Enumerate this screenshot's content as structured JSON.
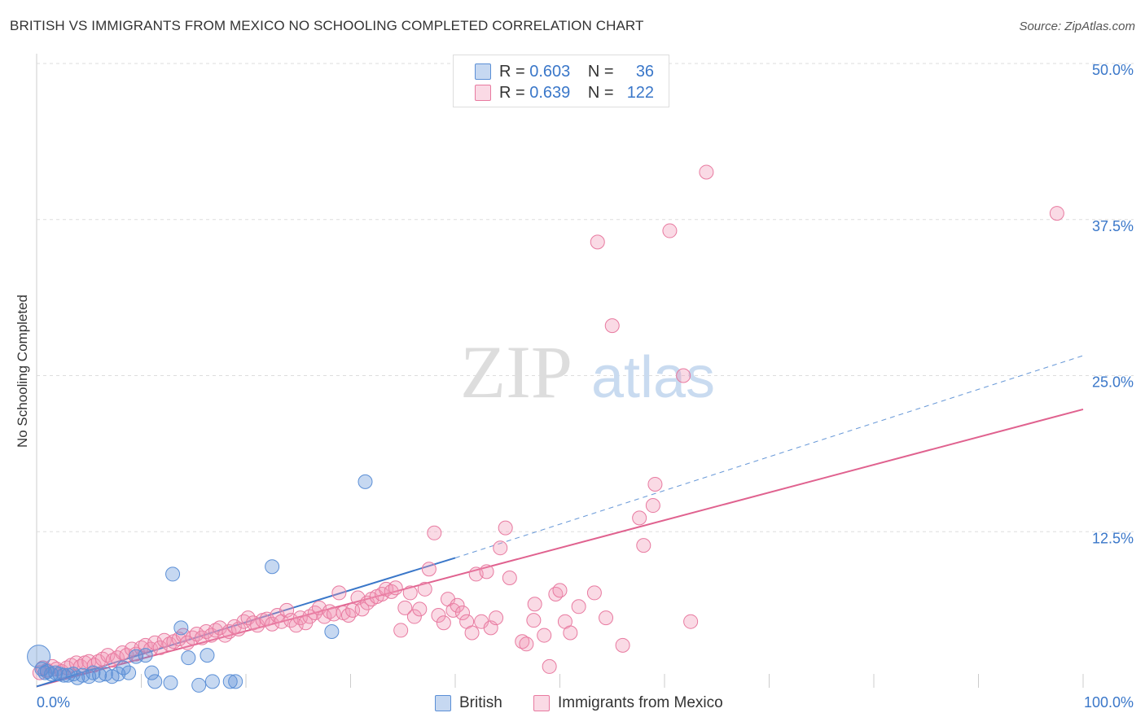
{
  "header": {
    "title": "BRITISH VS IMMIGRANTS FROM MEXICO NO SCHOOLING COMPLETED CORRELATION CHART",
    "source": "Source: ZipAtlas.com"
  },
  "watermark": {
    "zip": "ZIP",
    "atlas": "atlas"
  },
  "legend": {
    "rows": [
      {
        "r_label": "R =",
        "r_value": "0.603",
        "n_label": "N =",
        "n_value": "36",
        "color": "#5b8fd6"
      },
      {
        "r_label": "R =",
        "r_value": "0.639",
        "n_label": "N =",
        "n_value": "122",
        "color": "#e87aa0"
      }
    ]
  },
  "chart_data": {
    "type": "scatter",
    "title": "BRITISH VS IMMIGRANTS FROM MEXICO NO SCHOOLING COMPLETED CORRELATION CHART",
    "xlabel": "",
    "ylabel": "No Schooling Completed",
    "xlim": [
      0,
      100
    ],
    "ylim": [
      0,
      50
    ],
    "x_tick_labels": [
      "0.0%",
      "100.0%"
    ],
    "y_tick_labels": [
      "12.5%",
      "25.0%",
      "37.5%",
      "50.0%"
    ],
    "y_ticks": [
      12.5,
      25.0,
      37.5,
      50.0
    ],
    "grid": true,
    "legend_position": "top-center",
    "series": [
      {
        "name": "British",
        "color": "#5b8fd6",
        "fill": "rgba(91,143,214,0.35)",
        "trend": {
          "x": [
            0,
            40
          ],
          "y": [
            0.1,
            10.4
          ],
          "dashed_to": [
            100,
            26.6
          ]
        },
        "points": [
          [
            0.2,
            2.5
          ],
          [
            0.5,
            1.5
          ],
          [
            0.8,
            1.2
          ],
          [
            1,
            1.3
          ],
          [
            1.4,
            1.1
          ],
          [
            1.8,
            1.2
          ],
          [
            2.2,
            1.1
          ],
          [
            2.6,
            1.0
          ],
          [
            3,
            1.0
          ],
          [
            3.5,
            1.1
          ],
          [
            3.9,
            0.8
          ],
          [
            4.4,
            1.0
          ],
          [
            5,
            0.9
          ],
          [
            5.4,
            1.2
          ],
          [
            6,
            1.0
          ],
          [
            6.6,
            1.1
          ],
          [
            7.2,
            0.9
          ],
          [
            7.8,
            1.1
          ],
          [
            8.3,
            1.6
          ],
          [
            8.8,
            1.2
          ],
          [
            9.5,
            2.5
          ],
          [
            10.4,
            2.6
          ],
          [
            11.0,
            1.2
          ],
          [
            11.3,
            0.5
          ],
          [
            12.8,
            0.4
          ],
          [
            13,
            9.1
          ],
          [
            13.8,
            4.8
          ],
          [
            14.5,
            2.4
          ],
          [
            16.3,
            2.6
          ],
          [
            15.5,
            0.2
          ],
          [
            16.8,
            0.5
          ],
          [
            18.5,
            0.5
          ],
          [
            19,
            0.5
          ],
          [
            22.5,
            9.7
          ],
          [
            28.2,
            4.5
          ],
          [
            31.4,
            16.5
          ]
        ]
      },
      {
        "name": "Immigrants from Mexico",
        "color": "#e87aa0",
        "fill": "rgba(240,150,180,0.35)",
        "trend": {
          "x": [
            0,
            100
          ],
          "y": [
            0.1,
            22.3
          ]
        },
        "points": [
          [
            0.3,
            1.2
          ],
          [
            0.6,
            1.6
          ],
          [
            1,
            1.4
          ],
          [
            1.5,
            1.7
          ],
          [
            1.9,
            1.5
          ],
          [
            2.4,
            1.3
          ],
          [
            2.9,
            1.6
          ],
          [
            3.3,
            1.8
          ],
          [
            3.8,
            2.0
          ],
          [
            4.2,
            1.7
          ],
          [
            4.6,
            2.0
          ],
          [
            5,
            2.1
          ],
          [
            5.5,
            1.8
          ],
          [
            5.9,
            2.1
          ],
          [
            6.3,
            2.3
          ],
          [
            6.8,
            2.6
          ],
          [
            7.3,
            2.2
          ],
          [
            7.7,
            2.4
          ],
          [
            8.2,
            2.8
          ],
          [
            8.6,
            2.6
          ],
          [
            9.1,
            3.1
          ],
          [
            9.5,
            2.7
          ],
          [
            10,
            3.2
          ],
          [
            10.4,
            3.4
          ],
          [
            10.9,
            3.1
          ],
          [
            11.3,
            3.6
          ],
          [
            11.8,
            3.2
          ],
          [
            12.2,
            3.8
          ],
          [
            12.7,
            3.5
          ],
          [
            13.1,
            3.7
          ],
          [
            13.6,
            3.9
          ],
          [
            14,
            4.2
          ],
          [
            14.4,
            3.6
          ],
          [
            14.9,
            4.0
          ],
          [
            15.3,
            4.3
          ],
          [
            15.8,
            4.0
          ],
          [
            16.2,
            4.5
          ],
          [
            16.7,
            4.2
          ],
          [
            17.1,
            4.6
          ],
          [
            17.5,
            4.8
          ],
          [
            18,
            4.2
          ],
          [
            18.4,
            4.5
          ],
          [
            18.9,
            4.9
          ],
          [
            19.3,
            4.7
          ],
          [
            19.8,
            5.3
          ],
          [
            20.2,
            5.6
          ],
          [
            20.7,
            5.2
          ],
          [
            21.1,
            5.0
          ],
          [
            21.6,
            5.4
          ],
          [
            22,
            5.5
          ],
          [
            22.5,
            5.1
          ],
          [
            23,
            5.8
          ],
          [
            23.4,
            5.3
          ],
          [
            23.9,
            6.2
          ],
          [
            24.3,
            5.4
          ],
          [
            24.8,
            5.0
          ],
          [
            25.2,
            5.6
          ],
          [
            25.7,
            5.2
          ],
          [
            26.1,
            5.7
          ],
          [
            26.6,
            6.0
          ],
          [
            27,
            6.4
          ],
          [
            27.5,
            5.7
          ],
          [
            28,
            6.1
          ],
          [
            28.4,
            5.9
          ],
          [
            28.9,
            7.6
          ],
          [
            29.3,
            6.0
          ],
          [
            29.8,
            5.8
          ],
          [
            30.2,
            6.2
          ],
          [
            30.7,
            7.2
          ],
          [
            31.1,
            6.3
          ],
          [
            31.6,
            6.8
          ],
          [
            32,
            7.1
          ],
          [
            32.5,
            7.3
          ],
          [
            33,
            7.5
          ],
          [
            33.4,
            7.9
          ],
          [
            33.9,
            7.7
          ],
          [
            34.3,
            8.0
          ],
          [
            34.8,
            4.6
          ],
          [
            35.2,
            6.4
          ],
          [
            35.7,
            7.6
          ],
          [
            36.1,
            5.7
          ],
          [
            36.6,
            6.3
          ],
          [
            37.1,
            7.9
          ],
          [
            37.5,
            9.5
          ],
          [
            38,
            12.4
          ],
          [
            38.4,
            5.8
          ],
          [
            38.9,
            5.2
          ],
          [
            39.3,
            7.1
          ],
          [
            39.8,
            6.2
          ],
          [
            40.2,
            6.6
          ],
          [
            40.7,
            6.0
          ],
          [
            41.1,
            5.3
          ],
          [
            41.6,
            4.4
          ],
          [
            42,
            9.1
          ],
          [
            42.5,
            5.3
          ],
          [
            43,
            9.3
          ],
          [
            43.4,
            4.8
          ],
          [
            43.9,
            5.6
          ],
          [
            44.3,
            11.2
          ],
          [
            44.8,
            12.8
          ],
          [
            45.2,
            8.8
          ],
          [
            46.4,
            3.7
          ],
          [
            46.8,
            3.5
          ],
          [
            47.6,
            6.7
          ],
          [
            47.5,
            5.4
          ],
          [
            48.5,
            4.2
          ],
          [
            49,
            1.7
          ],
          [
            49.6,
            7.5
          ],
          [
            50,
            7.8
          ],
          [
            50.5,
            5.3
          ],
          [
            51,
            4.4
          ],
          [
            51.8,
            6.5
          ],
          [
            53.3,
            7.6
          ],
          [
            54.4,
            5.6
          ],
          [
            55,
            29.0
          ],
          [
            56,
            3.4
          ],
          [
            58,
            11.4
          ],
          [
            57.6,
            13.6
          ],
          [
            58.9,
            14.6
          ],
          [
            59.1,
            16.3
          ],
          [
            60.5,
            36.6
          ],
          [
            61.8,
            25.0
          ],
          [
            62.5,
            5.3
          ],
          [
            64,
            41.3
          ],
          [
            53.6,
            35.7
          ],
          [
            97.5,
            38.0
          ]
        ]
      }
    ]
  },
  "bottom_legend": [
    {
      "label": "British",
      "color": "#5b8fd6"
    },
    {
      "label": "Immigrants from Mexico",
      "color": "#e87aa0"
    }
  ]
}
